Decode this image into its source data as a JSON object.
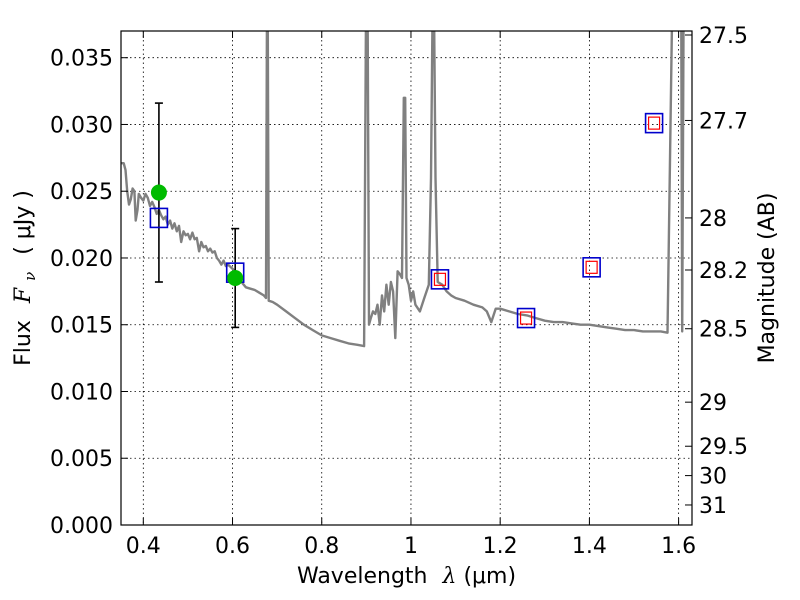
{
  "chart_data": {
    "type": "line",
    "xlabel_text": "Wavelength",
    "xlabel_sym": "λ",
    "xlabel_unit": " (μm)",
    "ylabel_text": "Flux",
    "ylabel_sym": "F",
    "ylabel_sub": "ν",
    "ylabel_unit": "( μJy )",
    "y2label": "Magnitude (AB)",
    "xlim": [
      0.35,
      1.63
    ],
    "ylim": [
      0.0,
      0.037
    ],
    "grid": true,
    "x_ticks": [
      {
        "v": 0.4,
        "label": "0.4"
      },
      {
        "v": 0.6,
        "label": "0.6"
      },
      {
        "v": 0.8,
        "label": "0.8"
      },
      {
        "v": 1.0,
        "label": "1"
      },
      {
        "v": 1.2,
        "label": "1.2"
      },
      {
        "v": 1.4,
        "label": "1.4"
      },
      {
        "v": 1.6,
        "label": "1.6"
      }
    ],
    "y_ticks": [
      {
        "v": 0.0,
        "label": "0.000"
      },
      {
        "v": 0.005,
        "label": "0.005"
      },
      {
        "v": 0.01,
        "label": "0.010"
      },
      {
        "v": 0.015,
        "label": "0.015"
      },
      {
        "v": 0.02,
        "label": "0.020"
      },
      {
        "v": 0.025,
        "label": "0.025"
      },
      {
        "v": 0.03,
        "label": "0.030"
      },
      {
        "v": 0.035,
        "label": "0.035"
      }
    ],
    "y2_ticks": [
      {
        "flux": 0.0367,
        "label": "27.5"
      },
      {
        "flux": 0.0303,
        "label": "27.7"
      },
      {
        "flux": 0.023,
        "label": "28"
      },
      {
        "flux": 0.0191,
        "label": "28.2"
      },
      {
        "flux": 0.0147,
        "label": "28.5"
      },
      {
        "flux": 0.0092,
        "label": "29"
      },
      {
        "flux": 0.0059,
        "label": "29.5"
      },
      {
        "flux": 0.0037,
        "label": "30"
      },
      {
        "flux": 0.0015,
        "label": "31"
      }
    ],
    "colors": {
      "sed": "#808080",
      "observed": "#00bb00",
      "model_box": "#0000cc",
      "model_inner": "#ff0000",
      "errorbar": "#000000"
    },
    "series": [
      {
        "kind": "sed",
        "points": [
          [
            0.35,
            0.0271
          ],
          [
            0.356,
            0.0271
          ],
          [
            0.36,
            0.0266
          ],
          [
            0.364,
            0.025
          ],
          [
            0.368,
            0.024
          ],
          [
            0.372,
            0.0244
          ],
          [
            0.376,
            0.0252
          ],
          [
            0.38,
            0.025
          ],
          [
            0.383,
            0.0228
          ],
          [
            0.387,
            0.0236
          ],
          [
            0.39,
            0.0248
          ],
          [
            0.395,
            0.0245
          ],
          [
            0.4,
            0.0243
          ],
          [
            0.405,
            0.0248
          ],
          [
            0.41,
            0.0245
          ],
          [
            0.415,
            0.0239
          ],
          [
            0.42,
            0.0242
          ],
          [
            0.425,
            0.0238
          ],
          [
            0.43,
            0.0233
          ],
          [
            0.435,
            0.0236
          ],
          [
            0.44,
            0.0232
          ],
          [
            0.445,
            0.0229
          ],
          [
            0.45,
            0.0231
          ],
          [
            0.455,
            0.0225
          ],
          [
            0.46,
            0.0228
          ],
          [
            0.465,
            0.0222
          ],
          [
            0.47,
            0.0226
          ],
          [
            0.475,
            0.022
          ],
          [
            0.48,
            0.0224
          ],
          [
            0.485,
            0.0212
          ],
          [
            0.49,
            0.022
          ],
          [
            0.495,
            0.0217
          ],
          [
            0.5,
            0.0218
          ],
          [
            0.505,
            0.0214
          ],
          [
            0.51,
            0.0219
          ],
          [
            0.515,
            0.0214
          ],
          [
            0.52,
            0.0215
          ],
          [
            0.525,
            0.0205
          ],
          [
            0.53,
            0.0212
          ],
          [
            0.535,
            0.0208
          ],
          [
            0.54,
            0.0209
          ],
          [
            0.545,
            0.0205
          ],
          [
            0.55,
            0.0207
          ],
          [
            0.555,
            0.0204
          ],
          [
            0.56,
            0.0205
          ],
          [
            0.565,
            0.02
          ],
          [
            0.57,
            0.0198
          ],
          [
            0.575,
            0.0195
          ],
          [
            0.58,
            0.0198
          ],
          [
            0.585,
            0.0194
          ],
          [
            0.59,
            0.0195
          ],
          [
            0.6,
            0.0192
          ],
          [
            0.61,
            0.0188
          ],
          [
            0.62,
            0.0182
          ],
          [
            0.63,
            0.0178
          ],
          [
            0.64,
            0.0177
          ],
          [
            0.65,
            0.0176
          ],
          [
            0.66,
            0.0174
          ],
          [
            0.67,
            0.0172
          ],
          [
            0.675,
            0.017
          ],
          [
            0.677,
            0.0372
          ],
          [
            0.679,
            0.0372
          ],
          [
            0.681,
            0.0168
          ],
          [
            0.69,
            0.0167
          ],
          [
            0.7,
            0.0165
          ],
          [
            0.72,
            0.016
          ],
          [
            0.74,
            0.0155
          ],
          [
            0.76,
            0.015
          ],
          [
            0.78,
            0.0146
          ],
          [
            0.8,
            0.0142
          ],
          [
            0.82,
            0.014
          ],
          [
            0.84,
            0.0138
          ],
          [
            0.86,
            0.0136
          ],
          [
            0.88,
            0.0135
          ],
          [
            0.895,
            0.0134
          ],
          [
            0.899,
            0.0372
          ],
          [
            0.903,
            0.0372
          ],
          [
            0.906,
            0.015
          ],
          [
            0.91,
            0.0155
          ],
          [
            0.915,
            0.016
          ],
          [
            0.92,
            0.0158
          ],
          [
            0.925,
            0.0165
          ],
          [
            0.93,
            0.015
          ],
          [
            0.935,
            0.0172
          ],
          [
            0.94,
            0.016
          ],
          [
            0.945,
            0.018
          ],
          [
            0.95,
            0.0165
          ],
          [
            0.955,
            0.0182
          ],
          [
            0.96,
            0.0175
          ],
          [
            0.965,
            0.014
          ],
          [
            0.97,
            0.019
          ],
          [
            0.975,
            0.0188
          ],
          [
            0.98,
            0.0185
          ],
          [
            0.984,
            0.032
          ],
          [
            0.987,
            0.032
          ],
          [
            0.99,
            0.0185
          ],
          [
            0.995,
            0.018
          ],
          [
            1.0,
            0.0168
          ],
          [
            1.005,
            0.0175
          ],
          [
            1.01,
            0.0165
          ],
          [
            1.02,
            0.016
          ],
          [
            1.03,
            0.017
          ],
          [
            1.04,
            0.018
          ],
          [
            1.045,
            0.026
          ],
          [
            1.048,
            0.0372
          ],
          [
            1.052,
            0.0372
          ],
          [
            1.055,
            0.026
          ],
          [
            1.06,
            0.0182
          ],
          [
            1.07,
            0.018
          ],
          [
            1.08,
            0.0175
          ],
          [
            1.09,
            0.0172
          ],
          [
            1.1,
            0.017
          ],
          [
            1.12,
            0.0168
          ],
          [
            1.14,
            0.0165
          ],
          [
            1.16,
            0.0163
          ],
          [
            1.17,
            0.016
          ],
          [
            1.18,
            0.0152
          ],
          [
            1.19,
            0.0162
          ],
          [
            1.2,
            0.0162
          ],
          [
            1.22,
            0.016
          ],
          [
            1.24,
            0.0158
          ],
          [
            1.26,
            0.0157
          ],
          [
            1.28,
            0.0155
          ],
          [
            1.3,
            0.0153
          ],
          [
            1.32,
            0.0152
          ],
          [
            1.34,
            0.0152
          ],
          [
            1.36,
            0.0151
          ],
          [
            1.38,
            0.015
          ],
          [
            1.4,
            0.015
          ],
          [
            1.42,
            0.0149
          ],
          [
            1.44,
            0.0148
          ],
          [
            1.46,
            0.0147
          ],
          [
            1.48,
            0.0146
          ],
          [
            1.5,
            0.0146
          ],
          [
            1.52,
            0.0145
          ],
          [
            1.54,
            0.0145
          ],
          [
            1.56,
            0.0145
          ],
          [
            1.575,
            0.0144
          ],
          [
            1.585,
            0.0372
          ],
          [
            1.6,
            0.0372
          ],
          [
            1.606,
            0.0372
          ],
          [
            1.608,
            0.0145
          ],
          [
            1.611,
            0.0372
          ],
          [
            1.614,
            0.0372
          ]
        ]
      },
      {
        "kind": "observed",
        "points": [
          {
            "x": 0.435,
            "y": 0.0249,
            "yerr": 0.0067
          },
          {
            "x": 0.606,
            "y": 0.0185,
            "yerr": 0.0037
          }
        ]
      },
      {
        "kind": "model",
        "points": [
          {
            "x": 0.435,
            "y": 0.023,
            "inner": false
          },
          {
            "x": 0.606,
            "y": 0.0189,
            "inner": false
          },
          {
            "x": 1.065,
            "y": 0.0184,
            "inner": true
          },
          {
            "x": 1.258,
            "y": 0.0155,
            "inner": true
          },
          {
            "x": 1.405,
            "y": 0.0193,
            "inner": true
          },
          {
            "x": 1.545,
            "y": 0.0301,
            "inner": true
          }
        ]
      }
    ]
  }
}
